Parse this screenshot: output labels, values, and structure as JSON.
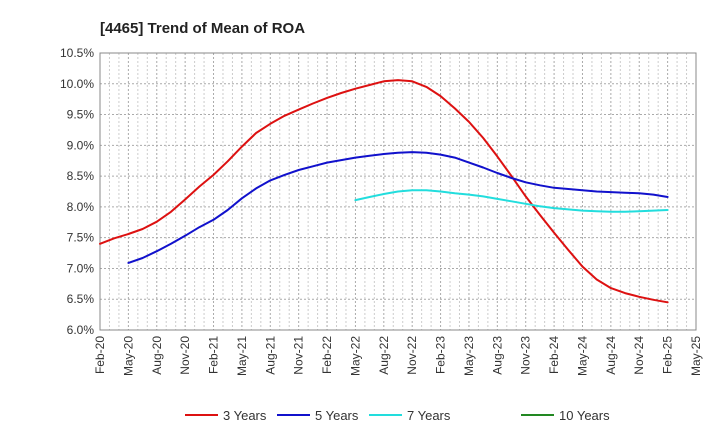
{
  "chart_data": {
    "type": "line",
    "title": "[4465]  Trend of Mean of ROA",
    "xlabel": "",
    "ylabel": "",
    "x_ticks": [
      "Feb-20",
      "May-20",
      "Aug-20",
      "Nov-20",
      "Feb-21",
      "May-21",
      "Aug-21",
      "Nov-21",
      "Feb-22",
      "May-22",
      "Aug-22",
      "Nov-22",
      "Feb-23",
      "May-23",
      "Aug-23",
      "Nov-23",
      "Feb-24",
      "May-24",
      "Aug-24",
      "Nov-24",
      "Feb-25",
      "May-25"
    ],
    "y_ticks": [
      "6.0%",
      "6.5%",
      "7.0%",
      "7.5%",
      "8.0%",
      "8.5%",
      "9.0%",
      "9.5%",
      "10.0%",
      "10.5%"
    ],
    "ylim": [
      6.0,
      10.5
    ],
    "grid": true,
    "legend_position": "bottom",
    "series": [
      {
        "name": "3 Years",
        "color": "#dd1111",
        "points": [
          [
            0,
            7.4
          ],
          [
            0.5,
            7.49
          ],
          [
            1,
            7.56
          ],
          [
            1.5,
            7.64
          ],
          [
            2,
            7.76
          ],
          [
            2.5,
            7.92
          ],
          [
            3,
            8.12
          ],
          [
            3.5,
            8.33
          ],
          [
            4,
            8.52
          ],
          [
            4.5,
            8.74
          ],
          [
            5,
            8.98
          ],
          [
            5.5,
            9.2
          ],
          [
            6,
            9.35
          ],
          [
            6.5,
            9.48
          ],
          [
            7,
            9.58
          ],
          [
            7.5,
            9.68
          ],
          [
            8,
            9.77
          ],
          [
            8.5,
            9.85
          ],
          [
            9,
            9.92
          ],
          [
            9.5,
            9.98
          ],
          [
            10,
            10.04
          ],
          [
            10.5,
            10.06
          ],
          [
            11,
            10.04
          ],
          [
            11.5,
            9.95
          ],
          [
            12,
            9.8
          ],
          [
            12.5,
            9.6
          ],
          [
            13,
            9.38
          ],
          [
            13.5,
            9.12
          ],
          [
            14,
            8.82
          ],
          [
            14.5,
            8.5
          ],
          [
            15,
            8.17
          ],
          [
            15.5,
            7.87
          ],
          [
            16,
            7.58
          ],
          [
            16.5,
            7.3
          ],
          [
            17,
            7.03
          ],
          [
            17.5,
            6.82
          ],
          [
            18,
            6.68
          ],
          [
            18.5,
            6.6
          ],
          [
            19,
            6.54
          ],
          [
            19.5,
            6.49
          ],
          [
            20,
            6.45
          ]
        ]
      },
      {
        "name": "5 Years",
        "color": "#1111cc",
        "points": [
          [
            1,
            7.09
          ],
          [
            1.5,
            7.17
          ],
          [
            2,
            7.28
          ],
          [
            2.5,
            7.4
          ],
          [
            3,
            7.53
          ],
          [
            3.5,
            7.67
          ],
          [
            4,
            7.79
          ],
          [
            4.5,
            7.95
          ],
          [
            5,
            8.14
          ],
          [
            5.5,
            8.3
          ],
          [
            6,
            8.43
          ],
          [
            6.5,
            8.52
          ],
          [
            7,
            8.6
          ],
          [
            7.5,
            8.66
          ],
          [
            8,
            8.72
          ],
          [
            8.5,
            8.76
          ],
          [
            9,
            8.8
          ],
          [
            9.5,
            8.83
          ],
          [
            10,
            8.86
          ],
          [
            10.5,
            8.88
          ],
          [
            11,
            8.89
          ],
          [
            11.5,
            8.88
          ],
          [
            12,
            8.85
          ],
          [
            12.5,
            8.8
          ],
          [
            13,
            8.72
          ],
          [
            13.5,
            8.64
          ],
          [
            14,
            8.55
          ],
          [
            14.5,
            8.47
          ],
          [
            15,
            8.4
          ],
          [
            15.5,
            8.35
          ],
          [
            16,
            8.31
          ],
          [
            16.5,
            8.29
          ],
          [
            17,
            8.27
          ],
          [
            17.5,
            8.25
          ],
          [
            18,
            8.24
          ],
          [
            18.5,
            8.23
          ],
          [
            19,
            8.22
          ],
          [
            19.5,
            8.2
          ],
          [
            20,
            8.16
          ]
        ]
      },
      {
        "name": "7 Years",
        "color": "#22dddd",
        "points": [
          [
            9,
            8.11
          ],
          [
            9.5,
            8.16
          ],
          [
            10,
            8.21
          ],
          [
            10.5,
            8.25
          ],
          [
            11,
            8.27
          ],
          [
            11.5,
            8.27
          ],
          [
            12,
            8.25
          ],
          [
            12.5,
            8.22
          ],
          [
            13,
            8.2
          ],
          [
            13.5,
            8.17
          ],
          [
            14,
            8.13
          ],
          [
            14.5,
            8.09
          ],
          [
            15,
            8.05
          ],
          [
            15.5,
            8.01
          ],
          [
            16,
            7.98
          ],
          [
            16.5,
            7.96
          ],
          [
            17,
            7.94
          ],
          [
            17.5,
            7.93
          ],
          [
            18,
            7.92
          ],
          [
            18.5,
            7.92
          ],
          [
            19,
            7.93
          ],
          [
            19.5,
            7.94
          ],
          [
            20,
            7.95
          ]
        ]
      },
      {
        "name": "10 Years",
        "color": "#228822",
        "points": []
      }
    ]
  }
}
